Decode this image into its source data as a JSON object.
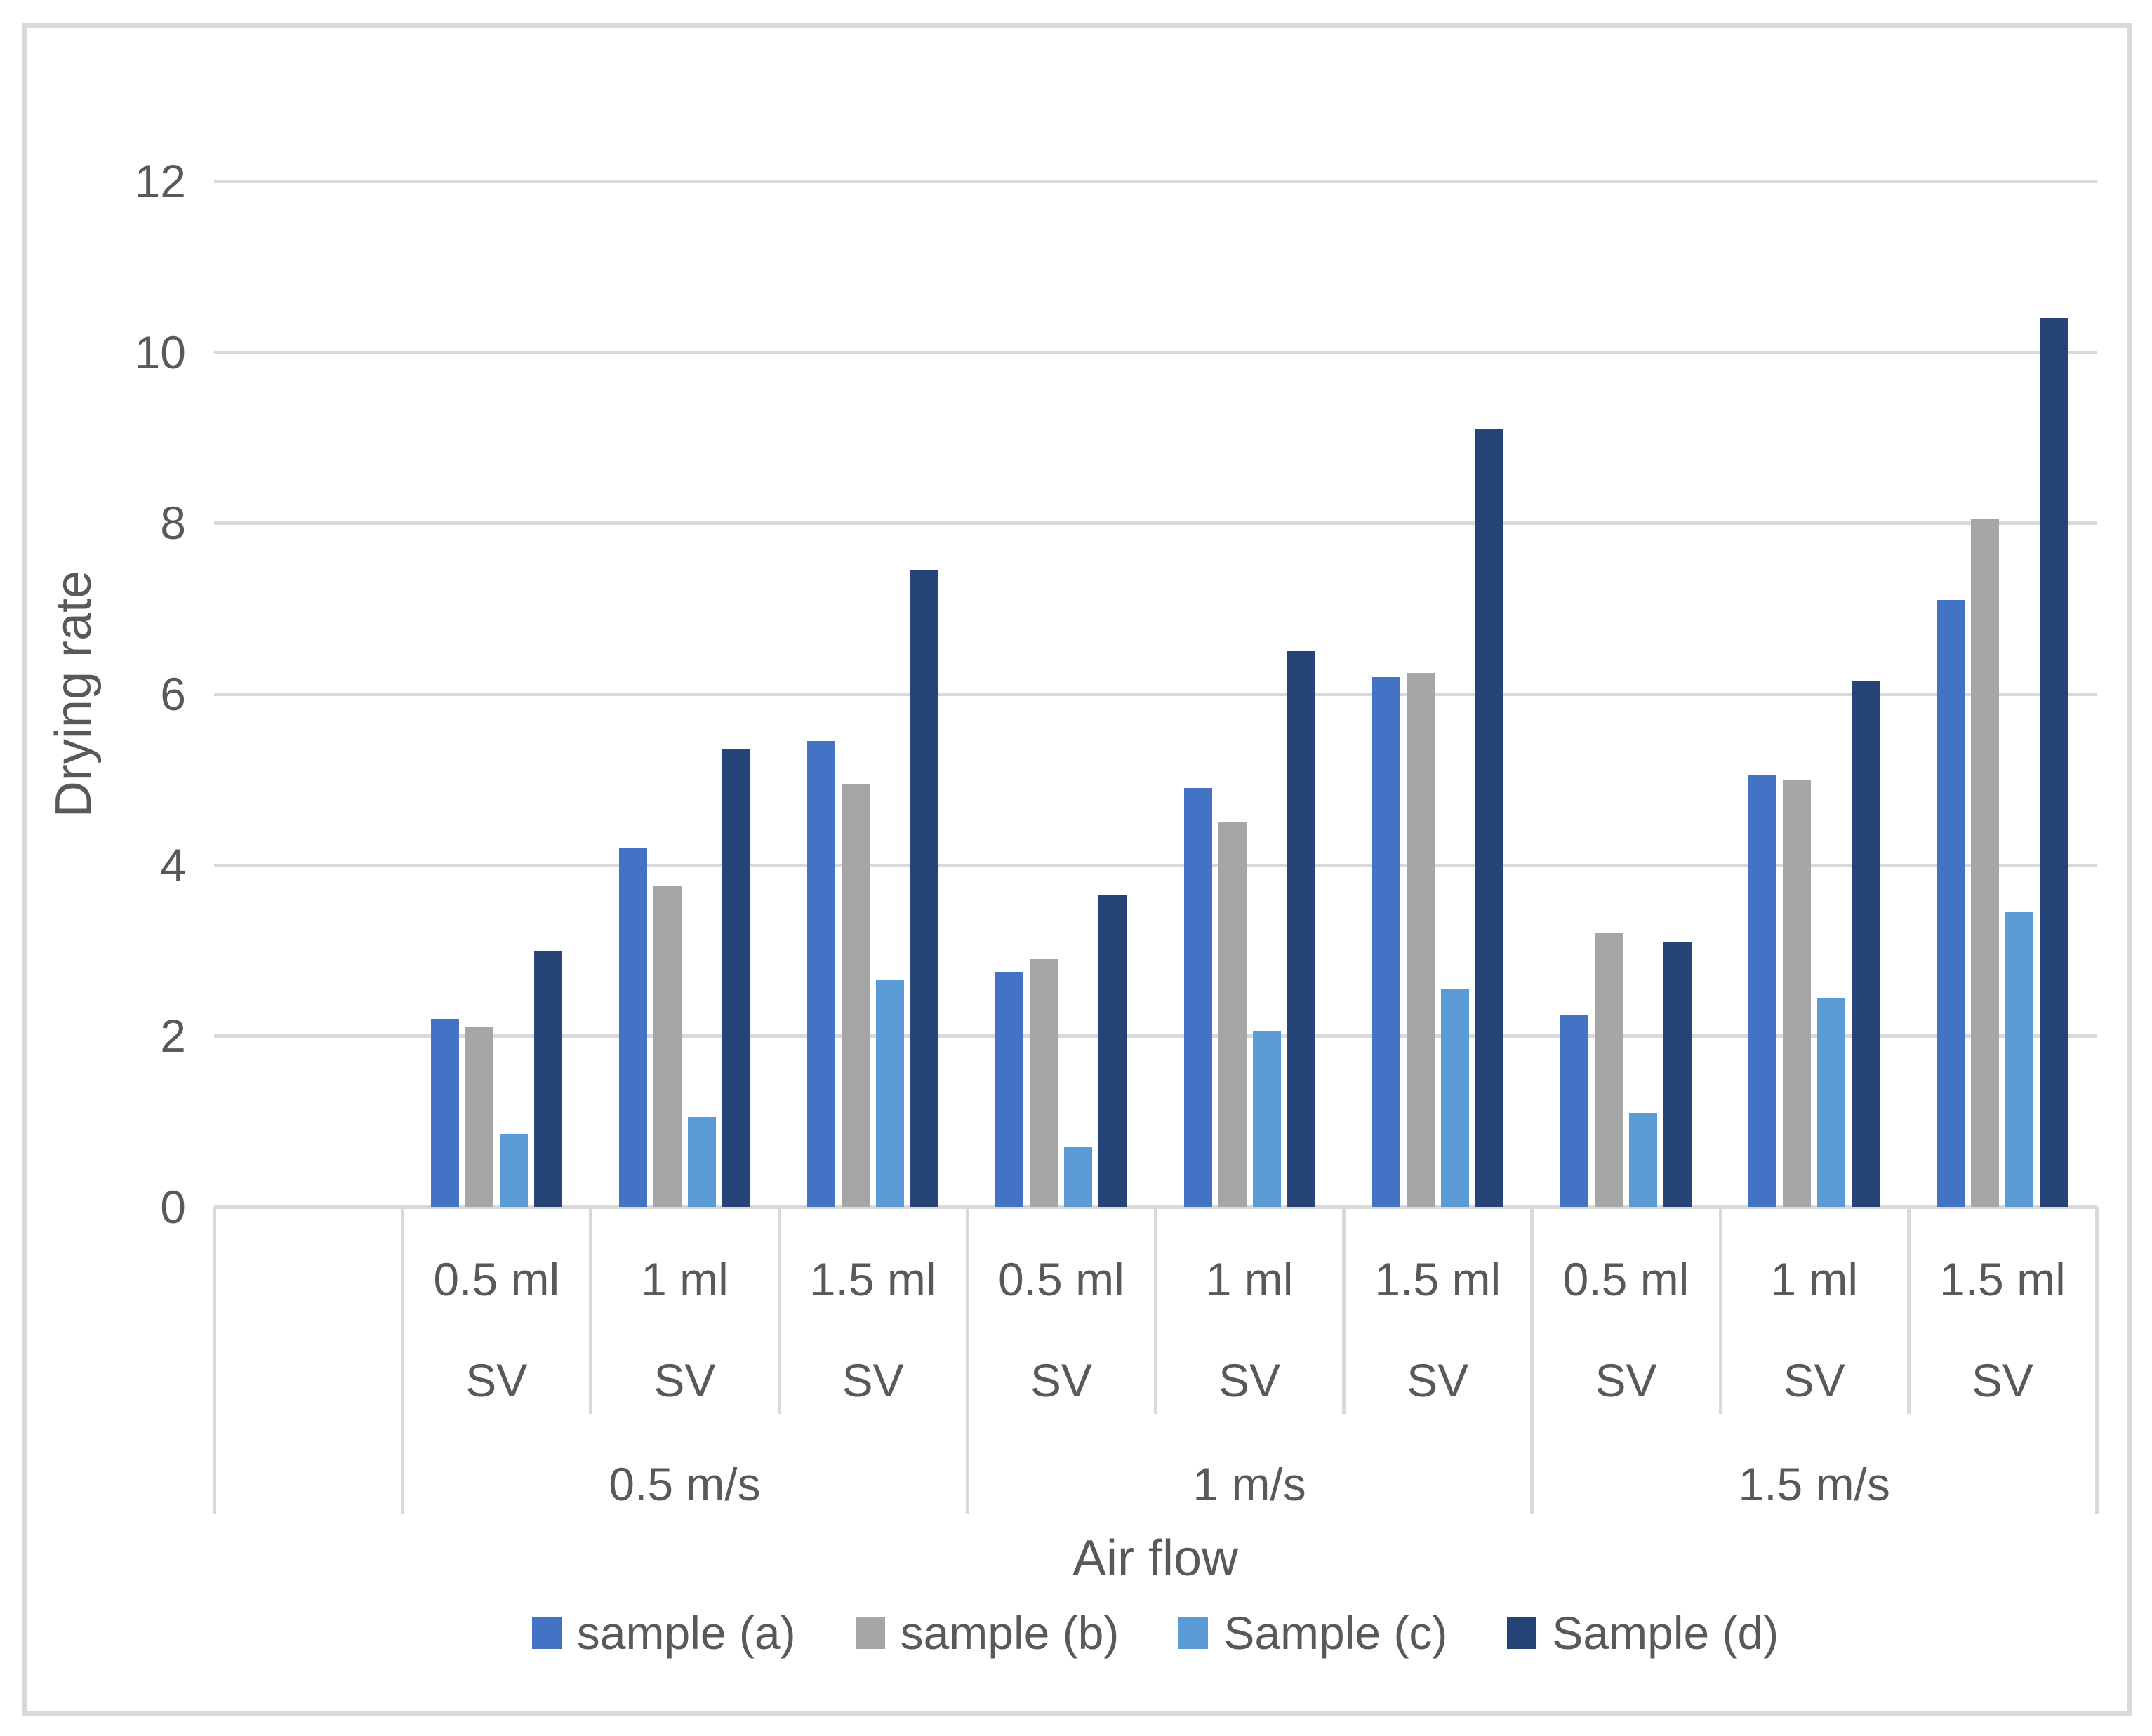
{
  "chart_data": {
    "type": "bar",
    "title": "",
    "ylabel": "Drying rate",
    "xlabel": "Air flow",
    "ylim": [
      0,
      12
    ],
    "yticks": [
      12,
      10,
      8,
      6,
      4,
      2,
      0
    ],
    "grid": "horizontal",
    "legend_position": "bottom",
    "categories": [
      {
        "volume": "0.5 ml",
        "sv": "SV",
        "airflow": "0.5 m/s"
      },
      {
        "volume": "1 ml",
        "sv": "SV",
        "airflow": "0.5 m/s"
      },
      {
        "volume": "1.5 ml",
        "sv": "SV",
        "airflow": "0.5 m/s"
      },
      {
        "volume": "0.5 ml",
        "sv": "SV",
        "airflow": "1 m/s"
      },
      {
        "volume": "1 ml",
        "sv": "SV",
        "airflow": "1 m/s"
      },
      {
        "volume": "1.5 ml",
        "sv": "SV",
        "airflow": "1 m/s"
      },
      {
        "volume": "0.5 ml",
        "sv": "SV",
        "airflow": "1.5 m/s"
      },
      {
        "volume": "1 ml",
        "sv": "SV",
        "airflow": "1.5 m/s"
      },
      {
        "volume": "1.5 ml",
        "sv": "SV",
        "airflow": "1.5 m/s"
      }
    ],
    "airflow_groups": [
      {
        "label": "0.5 m/s",
        "span": 3
      },
      {
        "label": "1 m/s",
        "span": 3
      },
      {
        "label": "1.5 m/s",
        "span": 3
      }
    ],
    "series": [
      {
        "name": "sample (a)",
        "color": "#4472C4",
        "values": [
          2.2,
          4.2,
          5.45,
          2.75,
          4.9,
          6.2,
          2.25,
          5.05,
          7.1
        ]
      },
      {
        "name": "sample (b)",
        "color": "#A6A6A6",
        "values": [
          2.1,
          3.75,
          4.95,
          2.9,
          4.5,
          6.25,
          3.2,
          5.0,
          8.05
        ]
      },
      {
        "name": "Sample (c)",
        "color": "#5B9BD5",
        "values": [
          0.85,
          1.05,
          2.65,
          0.7,
          2.05,
          2.55,
          1.1,
          2.45,
          3.45
        ]
      },
      {
        "name": "Sample (d)",
        "color": "#264478",
        "values": [
          3.0,
          5.35,
          7.45,
          3.65,
          6.5,
          9.1,
          3.1,
          6.15,
          10.4
        ]
      }
    ]
  },
  "colors": {
    "text": "#595959",
    "gridline": "#D9D9D9",
    "frame_border": "#D9D9D9",
    "background": "#FFFFFF"
  }
}
